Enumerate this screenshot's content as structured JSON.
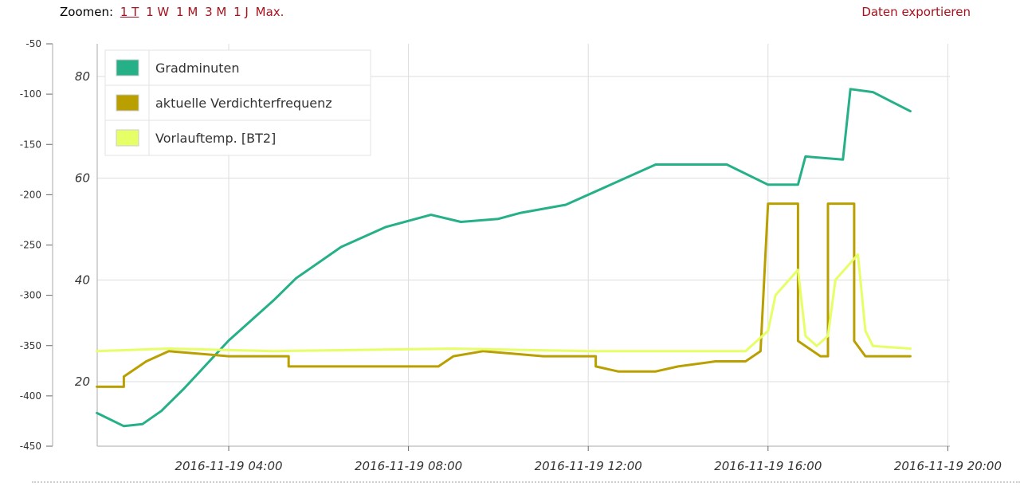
{
  "toolbar": {
    "zoom_label": "Zoomen:",
    "zoom_options": [
      "1 T",
      "1 W",
      "1 M",
      "3 M",
      "1 J",
      "Max."
    ],
    "active_zoom": "1 T",
    "export_label": "Daten exportieren"
  },
  "colors": {
    "link": "#a8101c",
    "gradminuten": "#25b088",
    "verdichter": "#b9a000",
    "vorlauf": "#e6ff66",
    "grid": "#dddddd"
  },
  "chart_data": {
    "type": "line",
    "x_axis": {
      "type": "datetime",
      "ticks": [
        "2016-11-19 04:00",
        "2016-11-19 08:00",
        "2016-11-19 12:00",
        "2016-11-19 16:00",
        "2016-11-19 20:00"
      ]
    },
    "y_left": {
      "ticks": [
        "-50",
        "-100",
        "-150",
        "-200",
        "-250",
        "-300",
        "-350",
        "-400",
        "-450"
      ],
      "range": [
        -450,
        -50
      ]
    },
    "y_right": {
      "ticks": [
        "80",
        "60",
        "40",
        "20"
      ],
      "range": [
        7,
        87
      ]
    },
    "grid": true,
    "legend_position": "top-left",
    "series": [
      {
        "name": "Gradminuten",
        "axis": "left",
        "color": "#25b088",
        "points": [
          [
            "2016-11-19 01:04",
            -417
          ],
          [
            "2016-11-19 01:40",
            -430
          ],
          [
            "2016-11-19 02:05",
            -428
          ],
          [
            "2016-11-19 02:30",
            -415
          ],
          [
            "2016-11-19 03:00",
            -393
          ],
          [
            "2016-11-19 04:00",
            -345
          ],
          [
            "2016-11-19 05:00",
            -305
          ],
          [
            "2016-11-19 05:30",
            -283
          ],
          [
            "2016-11-19 06:30",
            -252
          ],
          [
            "2016-11-19 07:30",
            -232
          ],
          [
            "2016-11-19 08:30",
            -220
          ],
          [
            "2016-11-19 09:10",
            -227
          ],
          [
            "2016-11-19 10:00",
            -224
          ],
          [
            "2016-11-19 10:30",
            -218
          ],
          [
            "2016-11-19 11:30",
            -210
          ],
          [
            "2016-11-19 12:30",
            -190
          ],
          [
            "2016-11-19 13:30",
            -170
          ],
          [
            "2016-11-19 14:00",
            -170
          ],
          [
            "2016-11-19 15:05",
            -170
          ],
          [
            "2016-11-19 16:00",
            -190
          ],
          [
            "2016-11-19 16:40",
            -190
          ],
          [
            "2016-11-19 16:50",
            -162
          ],
          [
            "2016-11-19 17:40",
            -165
          ],
          [
            "2016-11-19 17:50",
            -95
          ],
          [
            "2016-11-19 18:20",
            -98
          ],
          [
            "2016-11-19 19:10",
            -117
          ]
        ]
      },
      {
        "name": "aktuelle Verdichterfrequenz",
        "axis": "right",
        "color": "#b9a000",
        "points": [
          [
            "2016-11-19 01:04",
            19
          ],
          [
            "2016-11-19 01:40",
            19
          ],
          [
            "2016-11-19 01:40",
            21
          ],
          [
            "2016-11-19 02:10",
            24
          ],
          [
            "2016-11-19 02:40",
            26
          ],
          [
            "2016-11-19 04:00",
            25
          ],
          [
            "2016-11-19 05:20",
            25
          ],
          [
            "2016-11-19 05:20",
            23
          ],
          [
            "2016-11-19 08:40",
            23
          ],
          [
            "2016-11-19 09:00",
            25
          ],
          [
            "2016-11-19 09:40",
            26
          ],
          [
            "2016-11-19 11:00",
            25
          ],
          [
            "2016-11-19 12:10",
            25
          ],
          [
            "2016-11-19 12:10",
            23
          ],
          [
            "2016-11-19 12:40",
            22
          ],
          [
            "2016-11-19 13:30",
            22
          ],
          [
            "2016-11-19 14:00",
            23
          ],
          [
            "2016-11-19 14:50",
            24
          ],
          [
            "2016-11-19 15:30",
            24
          ],
          [
            "2016-11-19 15:50",
            26
          ],
          [
            "2016-11-19 16:00",
            55
          ],
          [
            "2016-11-19 16:40",
            55
          ],
          [
            "2016-11-19 16:40",
            28
          ],
          [
            "2016-11-19 17:10",
            25
          ],
          [
            "2016-11-19 17:20",
            25
          ],
          [
            "2016-11-19 17:20",
            55
          ],
          [
            "2016-11-19 17:55",
            55
          ],
          [
            "2016-11-19 17:55",
            28
          ],
          [
            "2016-11-19 18:10",
            25
          ],
          [
            "2016-11-19 19:10",
            25
          ]
        ]
      },
      {
        "name": "Vorlauftemp. [BT2]",
        "axis": "right",
        "color": "#e6ff66",
        "points": [
          [
            "2016-11-19 01:04",
            26
          ],
          [
            "2016-11-19 02:40",
            26.5
          ],
          [
            "2016-11-19 05:00",
            26
          ],
          [
            "2016-11-19 09:00",
            26.5
          ],
          [
            "2016-11-19 12:00",
            26
          ],
          [
            "2016-11-19 15:30",
            26
          ],
          [
            "2016-11-19 16:00",
            30
          ],
          [
            "2016-11-19 16:10",
            37
          ],
          [
            "2016-11-19 16:40",
            42
          ],
          [
            "2016-11-19 16:50",
            29
          ],
          [
            "2016-11-19 17:05",
            27
          ],
          [
            "2016-11-19 17:20",
            29
          ],
          [
            "2016-11-19 17:30",
            40
          ],
          [
            "2016-11-19 18:00",
            45
          ],
          [
            "2016-11-19 18:10",
            30
          ],
          [
            "2016-11-19 18:20",
            27
          ],
          [
            "2016-11-19 19:10",
            26.5
          ]
        ]
      }
    ]
  }
}
